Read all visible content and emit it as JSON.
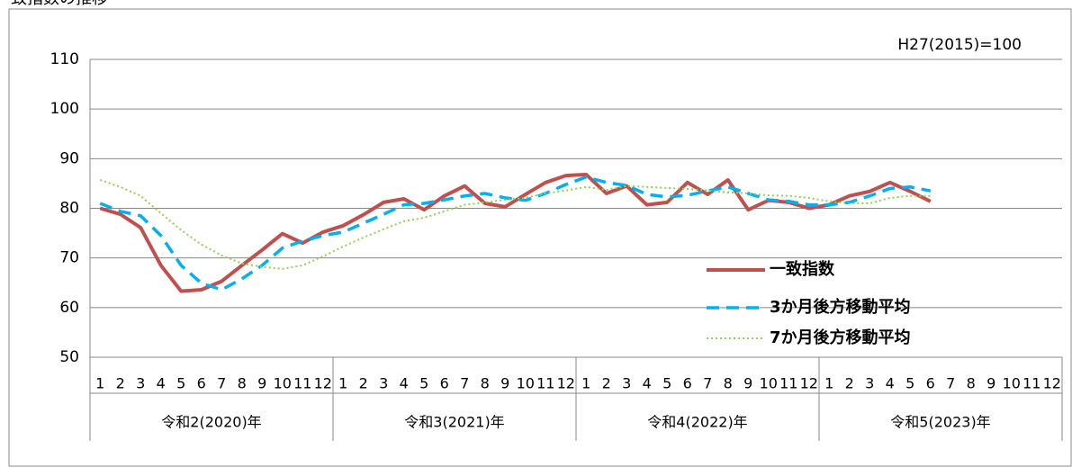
{
  "chart_data": {
    "type": "line",
    "title": "致指数の推移",
    "annotation": "H27(2015)=100",
    "categories": [
      "1",
      "2",
      "3",
      "4",
      "5",
      "6",
      "7",
      "8",
      "9",
      "10",
      "11",
      "12",
      "1",
      "2",
      "3",
      "4",
      "5",
      "6",
      "7",
      "8",
      "9",
      "10",
      "11",
      "12",
      "1",
      "2",
      "3",
      "4",
      "5",
      "6",
      "7",
      "8",
      "9",
      "10",
      "11",
      "12",
      "1",
      "2",
      "3",
      "4",
      "5",
      "6",
      "7",
      "8",
      "9",
      "10",
      "11",
      "12"
    ],
    "category_groups": [
      "令和2(2020)年",
      "令和3(2021)年",
      "令和4(2022)年",
      "令和5(2023)年"
    ],
    "ylim": [
      50,
      110
    ],
    "yticks": [
      50,
      60,
      70,
      80,
      90,
      100,
      110
    ],
    "grid": true,
    "series": [
      {
        "name": "一致指数",
        "color": "#c0504d",
        "style": "solid",
        "values": [
          80.0,
          78.8,
          76.1,
          68.5,
          63.3,
          63.6,
          65.3,
          68.5,
          71.6,
          74.9,
          73.0,
          75.2,
          76.5,
          78.7,
          81.2,
          81.9,
          79.7,
          82.5,
          84.5,
          81.0,
          80.3,
          82.8,
          85.2,
          86.6,
          86.8,
          83.0,
          84.5,
          80.7,
          81.2,
          85.2,
          82.8,
          85.7,
          79.7,
          81.6,
          81.2,
          80.0,
          80.7,
          82.5,
          83.4,
          85.2,
          83.4,
          81.4,
          null,
          null,
          null,
          null,
          null,
          null
        ]
      },
      {
        "name": "3か月後方移動平均",
        "color": "#00b0f0",
        "style": "dashed",
        "values": [
          81.0,
          79.4,
          78.5,
          74.5,
          68.5,
          64.9,
          63.6,
          65.8,
          68.5,
          72.0,
          73.4,
          74.5,
          75.2,
          77.0,
          78.8,
          80.7,
          81.0,
          81.7,
          82.5,
          83.0,
          82.1,
          81.6,
          83.0,
          84.8,
          86.3,
          85.2,
          84.6,
          82.8,
          82.3,
          82.6,
          83.5,
          84.3,
          83.0,
          81.7,
          81.4,
          80.7,
          80.7,
          81.2,
          82.5,
          84.0,
          84.3,
          83.5,
          null,
          null,
          null,
          null,
          null,
          null
        ]
      },
      {
        "name": "7か月後方移動平均",
        "color": "#92d050",
        "style": "dotted",
        "values": [
          85.7,
          84.3,
          82.5,
          79.0,
          75.6,
          72.7,
          70.5,
          68.9,
          68.2,
          67.8,
          68.5,
          70.3,
          72.3,
          74.1,
          75.8,
          77.4,
          78.1,
          79.4,
          80.7,
          81.2,
          81.7,
          82.1,
          83.0,
          83.6,
          84.3,
          83.7,
          84.5,
          84.3,
          84.1,
          83.9,
          83.6,
          83.2,
          83.0,
          82.6,
          82.5,
          82.1,
          81.4,
          81.0,
          81.0,
          82.1,
          82.5,
          82.5,
          null,
          null,
          null,
          null,
          null,
          null
        ]
      }
    ]
  }
}
